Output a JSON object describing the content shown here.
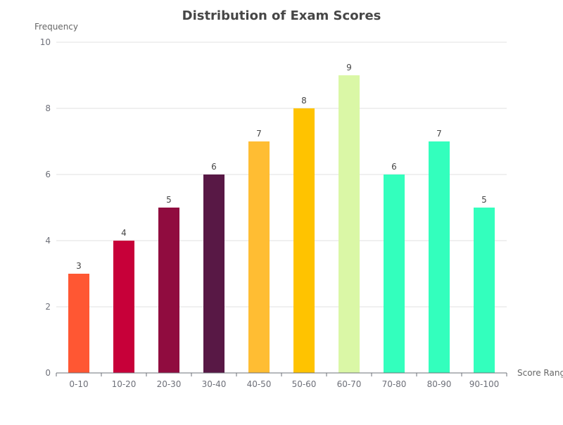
{
  "chart_data": {
    "type": "bar",
    "title": "Distribution of Exam Scores",
    "xlabel": "Score Range",
    "ylabel": "Frequency",
    "categories": [
      "0-10",
      "10-20",
      "20-30",
      "30-40",
      "40-50",
      "50-60",
      "60-70",
      "70-80",
      "80-90",
      "90-100"
    ],
    "values": [
      3,
      4,
      5,
      6,
      7,
      8,
      9,
      6,
      7,
      5
    ],
    "colors": [
      "#ff5733",
      "#c70039",
      "#900c3f",
      "#581845",
      "#ffbd33",
      "#ffc300",
      "#daf7a6",
      "#33ffbd",
      "#33ffbd",
      "#33ffbd"
    ],
    "ylim": [
      0,
      10
    ],
    "yticks": [
      0,
      2,
      4,
      6,
      8,
      10
    ],
    "grid": true,
    "data_labels": true
  }
}
